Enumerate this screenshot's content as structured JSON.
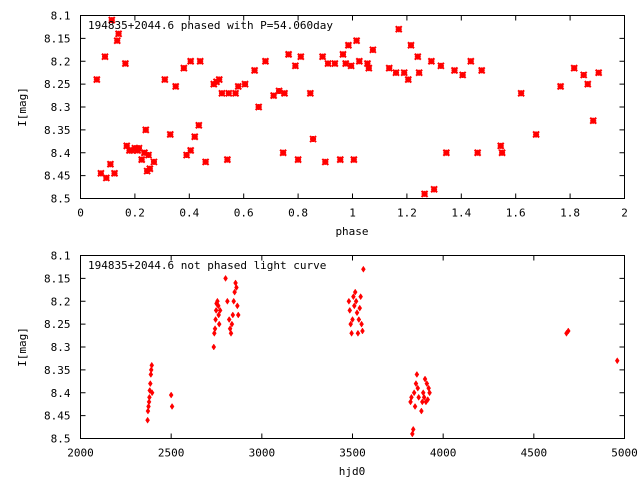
{
  "chart_data": [
    {
      "type": "scatter",
      "title": "194835+2044.6 phased with P=54.060day",
      "xlabel": "phase",
      "ylabel": "I[mag]",
      "xlim": [
        0,
        2
      ],
      "ylim": [
        8.5,
        8.1
      ],
      "y_inverted": true,
      "grid": false,
      "x_ticks": [
        "0",
        "0.2",
        "0.4",
        "0.6",
        "0.8",
        "1",
        "1.2",
        "1.4",
        "1.6",
        "1.8",
        "2"
      ],
      "y_ticks": [
        "8.1",
        "8.15",
        "8.2",
        "8.25",
        "8.3",
        "8.35",
        "8.4",
        "8.45",
        "8.5"
      ],
      "marker": "star",
      "color": "#ff0000",
      "x": [
        0.06,
        0.075,
        0.09,
        0.095,
        0.11,
        0.115,
        0.125,
        0.135,
        0.14,
        0.165,
        0.17,
        0.18,
        0.19,
        0.2,
        0.21,
        0.215,
        0.225,
        0.235,
        0.24,
        0.245,
        0.25,
        0.255,
        0.27,
        0.31,
        0.33,
        0.35,
        0.38,
        0.39,
        0.405,
        0.405,
        0.42,
        0.435,
        0.44,
        0.46,
        0.49,
        0.5,
        0.51,
        0.52,
        0.54,
        0.545,
        0.57,
        0.58,
        0.605,
        0.64,
        0.655,
        0.68,
        0.71,
        0.73,
        0.745,
        0.75,
        0.765,
        0.79,
        0.8,
        0.81,
        0.845,
        0.855,
        0.89,
        0.9,
        0.91,
        0.935,
        0.955,
        0.965,
        0.975,
        0.985,
        0.995,
        1.005,
        1.015,
        1.025,
        1.055,
        1.06,
        1.075,
        1.135,
        1.16,
        1.17,
        1.19,
        1.205,
        1.215,
        1.24,
        1.245,
        1.265,
        1.29,
        1.3,
        1.325,
        1.345,
        1.375,
        1.405,
        1.435,
        1.46,
        1.475,
        1.545,
        1.55,
        1.62,
        1.675,
        1.765,
        1.815,
        1.85,
        1.865,
        1.885,
        1.905
      ],
      "y": [
        8.24,
        8.445,
        8.19,
        8.455,
        8.425,
        8.11,
        8.445,
        8.155,
        8.14,
        8.205,
        8.385,
        8.395,
        8.395,
        8.39,
        8.395,
        8.39,
        8.415,
        8.4,
        8.35,
        8.44,
        8.405,
        8.435,
        8.42,
        8.24,
        8.36,
        8.255,
        8.215,
        8.405,
        8.395,
        8.2,
        8.365,
        8.34,
        8.2,
        8.42,
        8.25,
        8.245,
        8.24,
        8.27,
        8.415,
        8.27,
        8.27,
        8.255,
        8.25,
        8.22,
        8.3,
        8.2,
        8.275,
        8.265,
        8.4,
        8.27,
        8.185,
        8.21,
        8.415,
        8.19,
        8.27,
        8.37,
        8.19,
        8.42,
        8.205,
        8.205,
        8.415,
        8.185,
        8.205,
        8.165,
        8.21,
        8.415,
        8.155,
        8.2,
        8.205,
        8.215,
        8.175,
        8.215,
        8.225,
        8.13,
        8.225,
        8.24,
        8.165,
        8.19,
        8.225,
        8.49,
        8.2,
        8.48,
        8.21,
        8.4,
        8.22,
        8.23,
        8.2,
        8.4,
        8.22,
        8.385,
        8.4,
        8.27,
        8.36,
        8.255,
        8.215,
        8.23,
        8.25,
        8.33,
        8.225
      ]
    },
    {
      "type": "scatter",
      "title": "194835+2044.6 not phased light curve",
      "xlabel": "hjd0",
      "ylabel": "I[mag]",
      "xlim": [
        2000,
        5000
      ],
      "ylim": [
        8.5,
        8.1
      ],
      "y_inverted": true,
      "grid": false,
      "x_ticks": [
        "2000",
        "2500",
        "3000",
        "3500",
        "4000",
        "4500",
        "5000"
      ],
      "y_ticks": [
        "8.1",
        "8.15",
        "8.2",
        "8.25",
        "8.3",
        "8.35",
        "8.4",
        "8.45",
        "8.5"
      ],
      "marker": "diamond",
      "color": "#ff0000",
      "x": [
        2370,
        2372,
        2375,
        2378,
        2380,
        2382,
        2385,
        2388,
        2390,
        2393,
        2395,
        2500,
        2505,
        2735,
        2738,
        2742,
        2745,
        2748,
        2750,
        2755,
        2760,
        2762,
        2765,
        2770,
        2800,
        2810,
        2820,
        2825,
        2830,
        2835,
        2840,
        2845,
        2850,
        2855,
        2860,
        2865,
        2870,
        3480,
        3485,
        3490,
        3495,
        3500,
        3505,
        3510,
        3515,
        3520,
        3525,
        3530,
        3535,
        3540,
        3545,
        3550,
        3555,
        3560,
        3820,
        3825,
        3830,
        3835,
        3840,
        3845,
        3850,
        3855,
        3860,
        3865,
        3880,
        3885,
        3890,
        3895,
        3900,
        3905,
        3910,
        3915,
        3920,
        3925,
        4680,
        4690,
        4960
      ],
      "y": [
        8.46,
        8.44,
        8.43,
        8.42,
        8.41,
        8.395,
        8.38,
        8.36,
        8.35,
        8.34,
        8.4,
        8.405,
        8.43,
        8.3,
        8.27,
        8.26,
        8.24,
        8.22,
        8.205,
        8.2,
        8.21,
        8.23,
        8.25,
        8.22,
        8.15,
        8.2,
        8.24,
        8.26,
        8.27,
        8.25,
        8.23,
        8.2,
        8.18,
        8.16,
        8.17,
        8.21,
        8.23,
        8.2,
        8.22,
        8.25,
        8.27,
        8.24,
        8.19,
        8.21,
        8.18,
        8.2,
        8.225,
        8.27,
        8.24,
        8.215,
        8.19,
        8.25,
        8.265,
        8.13,
        8.42,
        8.41,
        8.49,
        8.48,
        8.4,
        8.43,
        8.38,
        8.36,
        8.39,
        8.41,
        8.44,
        8.42,
        8.4,
        8.41,
        8.37,
        8.42,
        8.38,
        8.415,
        8.39,
        8.4,
        8.27,
        8.265,
        8.33
      ]
    }
  ]
}
